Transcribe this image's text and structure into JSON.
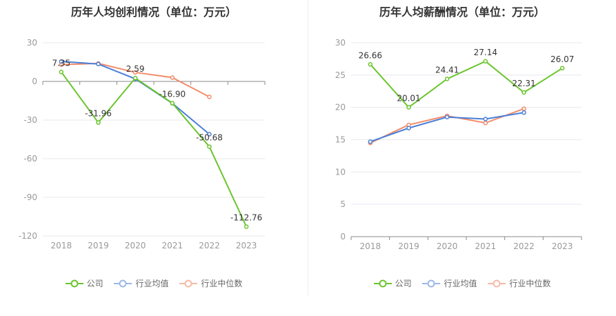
{
  "colors": {
    "company": "#6ac52d",
    "industry_avg": "#4a7fd9",
    "industry_median": "#f28b69",
    "grid": "#e8e8f0",
    "axis_text": "#999999"
  },
  "legend": {
    "company": "公司",
    "industry_avg": "行业均值",
    "industry_median": "行业中位数"
  },
  "chart_data": [
    {
      "type": "line",
      "title": "历年人均创利情况（单位：万元）",
      "categories": [
        "2018",
        "2019",
        "2020",
        "2021",
        "2022",
        "2023"
      ],
      "ylim": [
        -120,
        30
      ],
      "yticks": [
        "30",
        "0",
        "-30",
        "-60",
        "-90",
        "-120"
      ],
      "grid": true,
      "legend_position": "bottom",
      "series": [
        {
          "name": "公司",
          "key": "company",
          "values": [
            7.35,
            -31.96,
            2.59,
            -16.9,
            -50.68,
            -112.76
          ],
          "labels": [
            "7.35",
            "-31.96",
            "2.59",
            "-16.90",
            "-50.68",
            "-112.76"
          ]
        },
        {
          "name": "行业均值",
          "key": "industry_avg",
          "values": [
            15.5,
            13.5,
            2.0,
            -17.0,
            -41.0,
            null
          ]
        },
        {
          "name": "行业中位数",
          "key": "industry_median",
          "values": [
            13.0,
            14.0,
            7.0,
            3.0,
            -12.0,
            null
          ]
        }
      ]
    },
    {
      "type": "line",
      "title": "历年人均薪酬情况（单位：万元）",
      "categories": [
        "2018",
        "2019",
        "2020",
        "2021",
        "2022",
        "2023"
      ],
      "ylim": [
        0,
        30
      ],
      "yticks": [
        "30",
        "25",
        "20",
        "15",
        "10",
        "5",
        "0"
      ],
      "grid": true,
      "legend_position": "bottom",
      "series": [
        {
          "name": "公司",
          "key": "company",
          "values": [
            26.66,
            20.01,
            24.41,
            27.14,
            22.31,
            26.07
          ],
          "labels": [
            "26.66",
            "20.01",
            "24.41",
            "27.14",
            "22.31",
            "26.07"
          ]
        },
        {
          "name": "行业均值",
          "key": "industry_avg",
          "values": [
            14.7,
            16.8,
            18.5,
            18.2,
            19.2,
            null
          ]
        },
        {
          "name": "行业中位数",
          "key": "industry_median",
          "values": [
            14.5,
            17.3,
            18.7,
            17.6,
            19.8,
            null
          ]
        }
      ]
    }
  ]
}
